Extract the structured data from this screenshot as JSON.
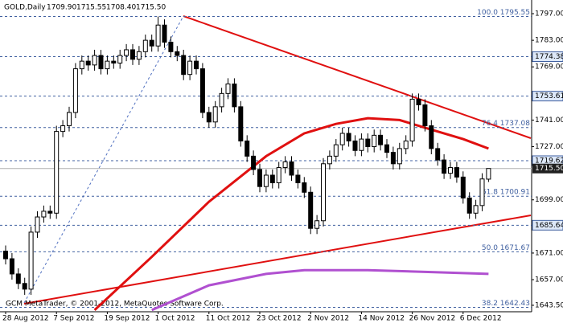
{
  "chart_data": {
    "type": "candlestick",
    "title": "GOLD,Daily",
    "header_values": [
      "1709.90",
      "1715.55",
      "1708.40",
      "1715.50"
    ],
    "watermark": "GCM MetaTrader, © 2001-2012, MetaQuotes Software Corp.",
    "categories": [
      "28 Aug 2012",
      null,
      null,
      null,
      null,
      null,
      null,
      null,
      "7 Sep 2012",
      null,
      null,
      null,
      null,
      null,
      null,
      null,
      "19 Sep 2012",
      null,
      null,
      null,
      null,
      null,
      null,
      null,
      "1 Oct 2012",
      null,
      null,
      null,
      null,
      null,
      null,
      null,
      "11 Oct 2012",
      null,
      null,
      null,
      null,
      null,
      null,
      null,
      "23 Oct 2012",
      null,
      null,
      null,
      null,
      null,
      null,
      null,
      "2 Nov 2012",
      null,
      null,
      null,
      null,
      null,
      null,
      null,
      "14 Nov 2012",
      null,
      null,
      null,
      null,
      null,
      null,
      null,
      "26 Nov 2012",
      null,
      null,
      null,
      null,
      null,
      null,
      null,
      "6 Dec 2012",
      null,
      null,
      null,
      null
    ],
    "open": [
      1672,
      1668,
      1660,
      1655,
      1652,
      1682,
      1690,
      1693,
      1692,
      1735,
      1738,
      1745,
      1768,
      1772,
      1770,
      1775,
      1768,
      1772,
      1771,
      1775,
      1778,
      1773,
      1777,
      1783,
      1780,
      1791,
      1782,
      1777,
      1775,
      1765,
      1772,
      1768,
      1745,
      1740,
      1748,
      1755,
      1760,
      1748,
      1730,
      1722,
      1715,
      1706,
      1712,
      1708,
      1716,
      1719,
      1712,
      1708,
      1703,
      1684,
      1688,
      1718,
      1722,
      1728,
      1734,
      1730,
      1725,
      1731,
      1727,
      1733,
      1728,
      1724,
      1718,
      1726,
      1730,
      1752,
      1749,
      1738,
      1726,
      1720,
      1713,
      1716,
      1711,
      1700,
      1692,
      1696,
      1709.9
    ],
    "high": [
      1675,
      1671,
      1663,
      1658,
      1685,
      1693,
      1696,
      1696,
      1738,
      1741,
      1748,
      1771,
      1775,
      1775,
      1778,
      1778,
      1775,
      1775,
      1778,
      1781,
      1781,
      1780,
      1786,
      1786,
      1795.55,
      1794,
      1785,
      1780,
      1778,
      1775,
      1775,
      1771,
      1748,
      1751,
      1758,
      1763,
      1763,
      1751,
      1733,
      1725,
      1718,
      1715,
      1715,
      1719,
      1722,
      1722,
      1715,
      1711,
      1706,
      1691,
      1721,
      1725,
      1731,
      1737,
      1737,
      1733,
      1734,
      1734,
      1736,
      1736,
      1731,
      1727,
      1729,
      1733,
      1755,
      1755,
      1752,
      1741,
      1729,
      1723,
      1719,
      1719,
      1714,
      1703,
      1699,
      1713,
      1715.55
    ],
    "low": [
      1665,
      1657,
      1652,
      1649,
      1649,
      1679,
      1687,
      1689,
      1689,
      1732,
      1735,
      1742,
      1765,
      1767,
      1767,
      1765,
      1765,
      1768,
      1768,
      1772,
      1770,
      1770,
      1774,
      1777,
      1777,
      1779,
      1774,
      1772,
      1762,
      1762,
      1765,
      1742,
      1737,
      1737,
      1745,
      1752,
      1745,
      1727,
      1719,
      1712,
      1703,
      1703,
      1705,
      1705,
      1713,
      1709,
      1705,
      1700,
      1681,
      1681,
      1685,
      1715,
      1719,
      1725,
      1727,
      1722,
      1722,
      1724,
      1724,
      1725,
      1721,
      1715,
      1715,
      1723,
      1727,
      1746,
      1735,
      1723,
      1717,
      1710,
      1710,
      1708,
      1697,
      1689,
      1689,
      1693,
      1708.4
    ],
    "close": [
      1668,
      1660,
      1655,
      1652,
      1682,
      1690,
      1693,
      1692,
      1735,
      1738,
      1745,
      1768,
      1772,
      1770,
      1775,
      1768,
      1772,
      1771,
      1775,
      1778,
      1773,
      1777,
      1783,
      1780,
      1791,
      1782,
      1777,
      1775,
      1765,
      1772,
      1768,
      1745,
      1740,
      1748,
      1755,
      1760,
      1748,
      1730,
      1722,
      1715,
      1706,
      1712,
      1708,
      1716,
      1719,
      1712,
      1708,
      1703,
      1684,
      1688,
      1718,
      1722,
      1728,
      1734,
      1730,
      1725,
      1731,
      1727,
      1733,
      1728,
      1724,
      1718,
      1726,
      1730,
      1752,
      1749,
      1738,
      1726,
      1720,
      1713,
      1716,
      1711,
      1700,
      1692,
      1696,
      1710,
      1715.5
    ],
    "overlays": [
      {
        "color": "#e01010",
        "x": [
          14,
          23,
          32,
          41,
          47,
          52,
          57,
          62,
          67,
          72,
          76
        ],
        "values": [
          1641,
          1669,
          1698,
          1722,
          1734,
          1739,
          1742,
          1741,
          1736,
          1731,
          1726
        ]
      },
      {
        "color": "#b050d0",
        "x": [
          23,
          32,
          41,
          47,
          57,
          67,
          76
        ],
        "values": [
          1641,
          1654,
          1660,
          1662,
          1662,
          1661,
          1660
        ]
      }
    ],
    "fib_levels": [
      {
        "value": 1795.55,
        "label": "100.0 1795.55"
      },
      {
        "value": 1737.08,
        "label": "76.4 1737.08"
      },
      {
        "value": 1700.91,
        "label": "61.8 1700.91"
      },
      {
        "value": 1671.67,
        "label": "50.0 1671.67"
      },
      {
        "value": 1642.43,
        "label": "38.2 1642.43"
      }
    ],
    "price_levels": [
      1774.38,
      1753.61,
      1719.62,
      1685.64
    ],
    "bid": {
      "value": 1715.5,
      "label": "1715.50"
    },
    "ylim": [
      1640.1,
      1804.2
    ],
    "yticks": [
      {
        "value": 1797,
        "label": "1797.00"
      },
      {
        "value": 1783,
        "label": "1783.00"
      },
      {
        "value": 1769,
        "label": "1769.00"
      },
      {
        "value": 1741,
        "label": "1741.00"
      },
      {
        "value": 1727,
        "label": "1727.00"
      },
      {
        "value": 1699,
        "label": "1699.00"
      },
      {
        "value": 1671,
        "label": "1671.00"
      },
      {
        "value": 1657,
        "label": "1657.00"
      },
      {
        "value": 1643.5,
        "label": "1643.50"
      }
    ]
  }
}
